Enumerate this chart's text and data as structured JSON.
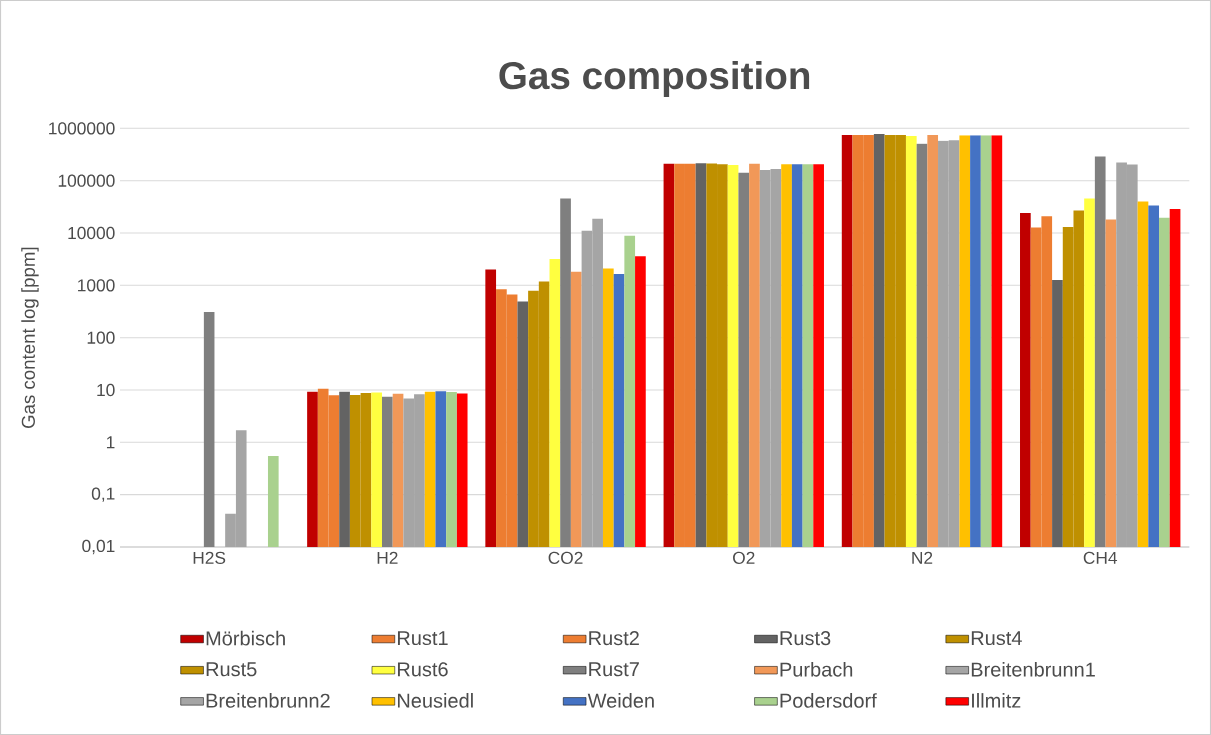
{
  "chart_data": {
    "type": "bar",
    "title": "Gas composition",
    "ylabel": "Gas content log [ppm]",
    "categories": [
      "H2S",
      "H2",
      "CO2",
      "O2",
      "N2",
      "CH4"
    ],
    "log": "y",
    "grid": "y",
    "legend": "bottom",
    "ylim": [
      0.01,
      1000000
    ],
    "yticks": [
      {
        "value": 0.01,
        "label": "0,01"
      },
      {
        "value": 0.1,
        "label": "0,1"
      },
      1,
      10,
      100,
      1000,
      10000,
      100000,
      1000000
    ],
    "series": [
      {
        "name": "Mörbisch",
        "color": "#c00000",
        "values": [
          null,
          9.3,
          2000,
          210000,
          746000,
          24000
        ]
      },
      {
        "name": "Rust1",
        "color": "#ed7d31",
        "values": [
          null,
          10.6,
          840,
          210000,
          750000,
          12700
        ]
      },
      {
        "name": "Rust2",
        "color": "#ed7d31",
        "values": [
          null,
          7.9,
          665,
          210000,
          750000,
          21000
        ]
      },
      {
        "name": "Rust3",
        "color": "#636363",
        "values": [
          null,
          9.3,
          490,
          215000,
          780000,
          1260
        ]
      },
      {
        "name": "Rust4",
        "color": "#bf9000",
        "values": [
          null,
          8.0,
          790,
          212000,
          746000,
          13000
        ]
      },
      {
        "name": "Rust5",
        "color": "#bf9000",
        "values": [
          null,
          8.8,
          1190,
          205000,
          746000,
          27000
        ]
      },
      {
        "name": "Rust6",
        "color": "#ffff40",
        "values": [
          null,
          9.0,
          3170,
          200000,
          715000,
          45700
        ]
      },
      {
        "name": "Rust7",
        "color": "#7f7f7f",
        "values": [
          310,
          7.4,
          45700,
          142000,
          510000,
          290000
        ]
      },
      {
        "name": "Purbach",
        "color": "#f19858",
        "values": [
          null,
          8.5,
          1820,
          210000,
          750000,
          18200
        ]
      },
      {
        "name": "Breitenbrunn1",
        "color": "#a5a5a5",
        "values": [
          0.043,
          6.9,
          11000,
          160000,
          580000,
          223000
        ]
      },
      {
        "name": "Breitenbrunn2",
        "color": "#a5a5a5",
        "values": [
          1.7,
          8.3,
          18800,
          167000,
          590000,
          204000
        ]
      },
      {
        "name": "Neusiedl",
        "color": "#ffc000",
        "values": [
          null,
          9.3,
          2100,
          205000,
          740000,
          40000
        ]
      },
      {
        "name": "Weiden",
        "color": "#4472c4",
        "values": [
          null,
          9.5,
          1640,
          205000,
          740000,
          33600
        ]
      },
      {
        "name": "Podersdorf",
        "color": "#a9d18e",
        "values": [
          0.55,
          9.2,
          8900,
          205000,
          740000,
          19600
        ]
      },
      {
        "name": "Illmitz",
        "color": "#ff0000",
        "values": [
          null,
          8.6,
          3600,
          205000,
          740000,
          28700
        ]
      }
    ]
  }
}
